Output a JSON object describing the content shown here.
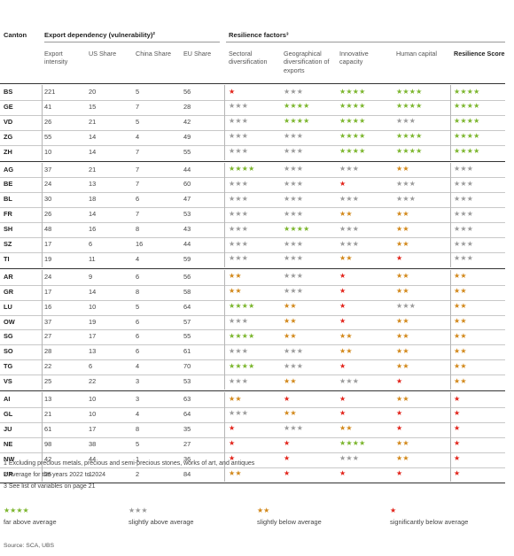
{
  "header": {
    "canton": "Canton",
    "export_group": "Export dependency (vulnerability)²",
    "resilience_group": "Resilience factors³",
    "cols": [
      "Export intensity",
      "US Share",
      "China Share",
      "EU Share",
      "Sectoral diversification",
      "Geographical diversification of exports",
      "Innovative capacity",
      "Human capital",
      "Resilience Score"
    ]
  },
  "groups": [
    {
      "rows": [
        {
          "canton": "BS",
          "values": [
            "221",
            "20",
            "5",
            "56"
          ],
          "ratings": [
            1,
            3,
            4,
            4,
            4
          ]
        },
        {
          "canton": "GE",
          "values": [
            "41",
            "15",
            "7",
            "28"
          ],
          "ratings": [
            3,
            4,
            4,
            4,
            4
          ]
        },
        {
          "canton": "VD",
          "values": [
            "26",
            "21",
            "5",
            "42"
          ],
          "ratings": [
            3,
            4,
            4,
            3,
            4
          ]
        },
        {
          "canton": "ZG",
          "values": [
            "55",
            "14",
            "4",
            "49"
          ],
          "ratings": [
            3,
            3,
            4,
            4,
            4
          ]
        },
        {
          "canton": "ZH",
          "values": [
            "10",
            "14",
            "7",
            "55"
          ],
          "ratings": [
            3,
            3,
            4,
            4,
            4
          ]
        }
      ]
    },
    {
      "rows": [
        {
          "canton": "AG",
          "values": [
            "37",
            "21",
            "7",
            "44"
          ],
          "ratings": [
            4,
            3,
            3,
            2,
            3
          ]
        },
        {
          "canton": "BE",
          "values": [
            "24",
            "13",
            "7",
            "60"
          ],
          "ratings": [
            3,
            3,
            1,
            3,
            3
          ]
        },
        {
          "canton": "BL",
          "values": [
            "30",
            "18",
            "6",
            "47"
          ],
          "ratings": [
            3,
            3,
            3,
            3,
            3
          ]
        },
        {
          "canton": "FR",
          "values": [
            "26",
            "14",
            "7",
            "53"
          ],
          "ratings": [
            3,
            3,
            2,
            2,
            3
          ]
        },
        {
          "canton": "SH",
          "values": [
            "48",
            "16",
            "8",
            "43"
          ],
          "ratings": [
            3,
            4,
            3,
            2,
            3
          ]
        },
        {
          "canton": "SZ",
          "values": [
            "17",
            "6",
            "16",
            "44"
          ],
          "ratings": [
            3,
            3,
            3,
            2,
            3
          ]
        },
        {
          "canton": "TI",
          "values": [
            "19",
            "11",
            "4",
            "59"
          ],
          "ratings": [
            3,
            3,
            2,
            1,
            3
          ]
        }
      ]
    },
    {
      "rows": [
        {
          "canton": "AR",
          "values": [
            "24",
            "9",
            "6",
            "56"
          ],
          "ratings": [
            2,
            3,
            1,
            2,
            2
          ]
        },
        {
          "canton": "GR",
          "values": [
            "17",
            "14",
            "8",
            "58"
          ],
          "ratings": [
            2,
            3,
            1,
            2,
            2
          ]
        },
        {
          "canton": "LU",
          "values": [
            "16",
            "10",
            "5",
            "64"
          ],
          "ratings": [
            4,
            2,
            1,
            3,
            2
          ]
        },
        {
          "canton": "OW",
          "values": [
            "37",
            "19",
            "6",
            "57"
          ],
          "ratings": [
            3,
            2,
            1,
            2,
            2
          ]
        },
        {
          "canton": "SG",
          "values": [
            "27",
            "17",
            "6",
            "55"
          ],
          "ratings": [
            4,
            2,
            2,
            2,
            2
          ]
        },
        {
          "canton": "SO",
          "values": [
            "28",
            "13",
            "6",
            "61"
          ],
          "ratings": [
            3,
            3,
            2,
            2,
            2
          ]
        },
        {
          "canton": "TG",
          "values": [
            "22",
            "6",
            "4",
            "70"
          ],
          "ratings": [
            4,
            3,
            1,
            2,
            2
          ]
        },
        {
          "canton": "VS",
          "values": [
            "25",
            "22",
            "3",
            "53"
          ],
          "ratings": [
            3,
            2,
            3,
            1,
            2
          ]
        }
      ]
    },
    {
      "rows": [
        {
          "canton": "AI",
          "values": [
            "13",
            "10",
            "3",
            "63"
          ],
          "ratings": [
            2,
            1,
            1,
            2,
            1
          ]
        },
        {
          "canton": "GL",
          "values": [
            "21",
            "10",
            "4",
            "64"
          ],
          "ratings": [
            3,
            2,
            1,
            1,
            1
          ]
        },
        {
          "canton": "JU",
          "values": [
            "61",
            "17",
            "8",
            "35"
          ],
          "ratings": [
            1,
            3,
            2,
            1,
            1
          ]
        },
        {
          "canton": "NE",
          "values": [
            "98",
            "38",
            "5",
            "27"
          ],
          "ratings": [
            1,
            1,
            4,
            2,
            1
          ]
        },
        {
          "canton": "NW",
          "values": [
            "42",
            "44",
            "1",
            "36"
          ],
          "ratings": [
            1,
            1,
            3,
            2,
            1
          ]
        },
        {
          "canton": "UR",
          "values": [
            "25",
            "1",
            "2",
            "84"
          ],
          "ratings": [
            2,
            1,
            1,
            1,
            1
          ]
        }
      ]
    }
  ],
  "footnotes": [
    "1  Excluding precious metals, precious and semi-precious stones, works of art, and antiques",
    "2  Average for the years 2022 to 2024",
    "3  See list of variables on page 21"
  ],
  "legend": [
    {
      "stars": 4,
      "label": "far above average"
    },
    {
      "stars": 3,
      "label": "slightly above average"
    },
    {
      "stars": 2,
      "label": "slightly below average"
    },
    {
      "stars": 1,
      "label": "significantly below average"
    }
  ],
  "source": "Source: SCA, UBS",
  "colors": {
    "four_stars": "#7bb52c",
    "three_stars": "#9a9a9a",
    "two_stars": "#d2881a",
    "one_star": "#e2231a"
  }
}
